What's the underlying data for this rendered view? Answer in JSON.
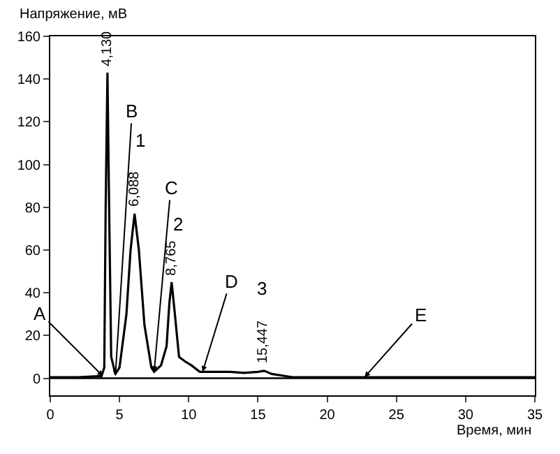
{
  "chart_data": {
    "type": "line",
    "xlabel": "Время, мин",
    "ylabel": "Напряжение, мВ",
    "xlim": [
      0,
      35
    ],
    "ylim": [
      -8,
      160
    ],
    "xticks": [
      0,
      5,
      10,
      15,
      20,
      25,
      30,
      35
    ],
    "yticks": [
      0,
      20,
      40,
      60,
      80,
      100,
      120,
      140,
      160
    ],
    "grid": false,
    "ref_lines": [
      {
        "axis": "y",
        "value": 0
      }
    ],
    "marker": "none",
    "line_style": "solid",
    "series": [
      {
        "color": "#000000",
        "x": [
          0,
          2,
          3.7,
          3.9,
          4.0,
          4.13,
          4.25,
          4.4,
          4.7,
          5.0,
          5.5,
          5.8,
          6.088,
          6.4,
          6.8,
          7.3,
          7.5,
          8.0,
          8.4,
          8.6,
          8.765,
          9.0,
          9.3,
          9.7,
          10.2,
          10.8,
          11,
          13,
          14,
          15,
          15.447,
          16,
          17,
          17.5,
          25,
          35
        ],
        "values": [
          0.5,
          0.5,
          1,
          5,
          80,
          143,
          80,
          10,
          2,
          5,
          30,
          60,
          77,
          60,
          25,
          5,
          3,
          6,
          15,
          35,
          45,
          30,
          10,
          8,
          6,
          3,
          3,
          3,
          2.5,
          3,
          3.5,
          2,
          1,
          0.5,
          0.5,
          0.5
        ]
      }
    ],
    "annotations": [
      {
        "text": "A",
        "x": 3.8,
        "y": 1
      },
      {
        "text": "B",
        "x": 4.7,
        "y": 1
      },
      {
        "text": "C",
        "x": 7.5,
        "y": 3
      },
      {
        "text": "D",
        "x": 11,
        "y": 3
      },
      {
        "text": "E",
        "x": 22.7,
        "y": 0.5
      },
      {
        "text": "4,130",
        "x": 4.13,
        "y": 143
      },
      {
        "text": "6,088",
        "x": 6.088,
        "y": 77
      },
      {
        "text": "8,765",
        "x": 8.765,
        "y": 45
      },
      {
        "text": "15,447",
        "x": 15.447,
        "y": 3.5
      },
      "1",
      "2",
      "3"
    ]
  }
}
